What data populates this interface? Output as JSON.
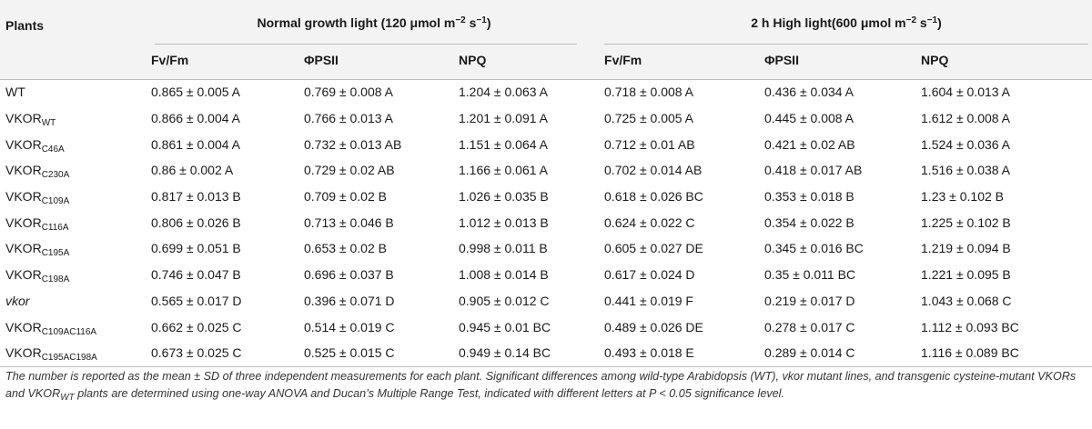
{
  "header": {
    "plants": "Plants",
    "group_normal": "Normal growth light (120 μmol m",
    "group_normal_exp": "−2",
    "group_normal_unit": " s",
    "group_normal_exp2": "−1",
    "group_normal_close": ")",
    "group_high": "2 h High light(600 μmol m",
    "group_high_exp": "−2",
    "group_high_unit": " s",
    "group_high_exp2": "−1",
    "group_high_close": ")",
    "cols": [
      "Fv/Fm",
      "ΦPSII",
      "NPQ",
      "Fv/Fm",
      "ΦPSII",
      "NPQ"
    ]
  },
  "rows": [
    {
      "name": "WT",
      "sub": "",
      "values": [
        "0.865 ± 0.005 A",
        "0.769 ± 0.008 A",
        "1.204 ± 0.063 A",
        "0.718 ± 0.008 A",
        "0.436 ± 0.034 A",
        "1.604 ± 0.013 A"
      ]
    },
    {
      "name": "VKOR",
      "sub": "WT",
      "values": [
        "0.866 ± 0.004 A",
        "0.766 ± 0.013 A",
        "1.201 ± 0.091 A",
        "0.725 ± 0.005 A",
        "0.445 ± 0.008 A",
        "1.612 ± 0.008 A"
      ]
    },
    {
      "name": "VKOR",
      "sub": "C46A",
      "values": [
        "0.861 ± 0.004 A",
        "0.732 ± 0.013 AB",
        "1.151 ± 0.064 A",
        "0.712 ± 0.01 AB",
        "0.421 ± 0.02 AB",
        "1.524 ± 0.036 A"
      ]
    },
    {
      "name": "VKOR",
      "sub": "C230A",
      "values": [
        "0.86 ± 0.002 A",
        "0.729 ± 0.02 AB",
        "1.166 ± 0.061 A",
        "0.702 ± 0.014 AB",
        "0.418 ± 0.017 AB",
        "1.516 ± 0.038 A"
      ]
    },
    {
      "name": "VKOR",
      "sub": "C109A",
      "values": [
        "0.817 ± 0.013 B",
        "0.709 ± 0.02 B",
        "1.026 ± 0.035 B",
        "0.618 ± 0.026 BC",
        "0.353 ± 0.018 B",
        "1.23 ± 0.102 B"
      ]
    },
    {
      "name": "VKOR",
      "sub": "C116A",
      "values": [
        "0.806 ± 0.026 B",
        "0.713 ± 0.046 B",
        "1.012 ± 0.013 B",
        "0.624 ± 0.022 C",
        "0.354 ± 0.022 B",
        "1.225 ± 0.102 B"
      ]
    },
    {
      "name": "VKOR",
      "sub": "C195A",
      "values": [
        "0.699 ± 0.051 B",
        "0.653 ± 0.02 B",
        "0.998 ± 0.011 B",
        "0.605 ± 0.027 DE",
        "0.345 ± 0.016 BC",
        "1.219 ± 0.094 B"
      ]
    },
    {
      "name": "VKOR",
      "sub": "C198A",
      "values": [
        "0.746 ± 0.047 B",
        "0.696 ± 0.037 B",
        "1.008 ± 0.014 B",
        "0.617 ± 0.024 D",
        "0.35 ± 0.011 BC",
        "1.221 ± 0.095 B"
      ]
    },
    {
      "name": "vkor",
      "sub": "",
      "values": [
        "0.565 ± 0.017 D",
        "0.396 ± 0.071 D",
        "0.905 ± 0.012 C",
        "0.441 ± 0.019 F",
        "0.219 ± 0.017 D",
        "1.043 ± 0.068 C"
      ]
    },
    {
      "name": "VKOR",
      "sub": "C109AC116A",
      "values": [
        "0.662 ± 0.025 C",
        "0.514 ± 0.019 C",
        "0.945 ± 0.01 BC",
        "0.489 ± 0.026 DE",
        "0.278 ± 0.017 C",
        "1.112 ± 0.093 BC"
      ]
    },
    {
      "name": "VKOR",
      "sub": "C195AC198A",
      "values": [
        "0.673 ± 0.025 C",
        "0.525 ± 0.015 C",
        "0.949 ± 0.14 BC",
        "0.493 ± 0.018 E",
        "0.289 ± 0.014 C",
        "1.116 ± 0.089 BC"
      ]
    }
  ],
  "footnote": {
    "part1": "The number is reported as the mean ± SD of three independent measurements for each plant. Significant differences among wild-type Arabidopsis (WT), vkor mutant lines, and transgenic cysteine-mutant VKORs and VKOR",
    "part1_sub": "WT",
    "part2": " plants are determined using one-way ANOVA and Ducan’s Multiple Range Test, indicated with different letters at P < 0.05 significance level."
  }
}
